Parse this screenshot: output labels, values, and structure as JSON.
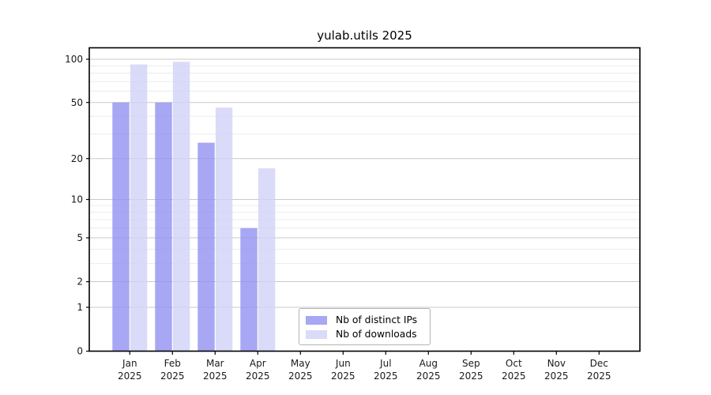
{
  "chart_data": {
    "type": "bar",
    "title": "yulab.utils 2025",
    "categories": [
      "Jan 2025",
      "Feb 2025",
      "Mar 2025",
      "Apr 2025",
      "May 2025",
      "Jun 2025",
      "Jul 2025",
      "Aug 2025",
      "Sep 2025",
      "Oct 2025",
      "Nov 2025",
      "Dec 2025"
    ],
    "series": [
      {
        "name": "Nb of distinct IPs",
        "color": "#a7a7f4",
        "values": [
          50,
          50,
          26,
          6,
          0,
          0,
          0,
          0,
          0,
          0,
          0,
          0
        ]
      },
      {
        "name": "Nb of downloads",
        "color": "#dadaf9",
        "values": [
          92,
          96,
          46,
          17,
          0,
          0,
          0,
          0,
          0,
          0,
          0,
          0
        ]
      }
    ],
    "yscale": "log1p",
    "ylim": [
      0,
      119
    ],
    "yticks": [
      0,
      1,
      2,
      5,
      10,
      20,
      50,
      100
    ],
    "yticks_minor": [
      3,
      4,
      6,
      7,
      8,
      9,
      30,
      40,
      60,
      70,
      80,
      90
    ],
    "xlabel": "",
    "ylabel": "",
    "grid": true,
    "legend_position": "inside-bottom-center"
  },
  "colors": {
    "background": "#ffffff",
    "major_grid": "#c9c9c9",
    "minor_grid": "#ececec",
    "axis": "#000000",
    "tick_text": "#1a1a1a",
    "legend_border": "#b3b3b3"
  }
}
